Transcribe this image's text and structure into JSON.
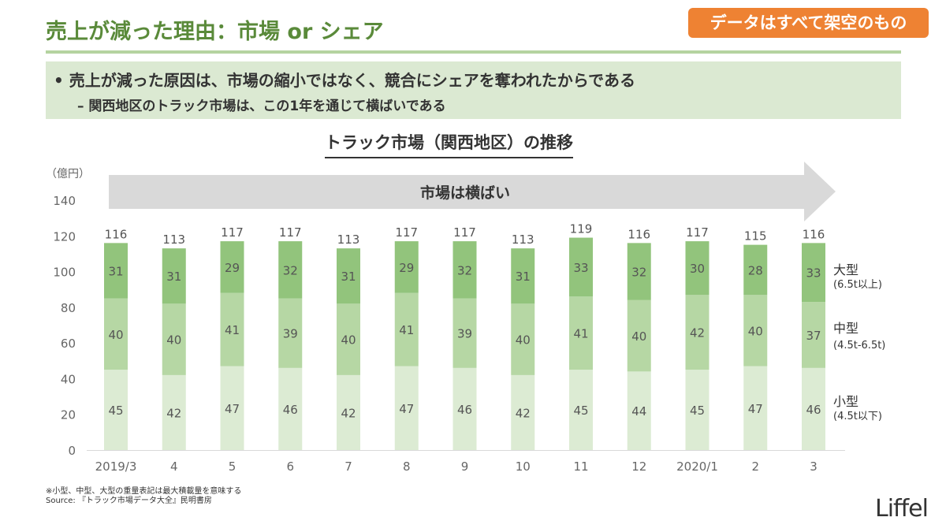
{
  "header": {
    "title": "売上が減った理由：市場 or シェア",
    "badge": "データはすべて架空のもの"
  },
  "message": {
    "main": "• 売上が減った原因は、市場の縮小ではなく、競合にシェアを奪われたからである",
    "sub": "– 関西地区のトラック市場は、この1年を通じて横ばいである"
  },
  "chart_data": {
    "type": "bar",
    "stacked": true,
    "title": "トラック市場（関西地区）の推移",
    "ylabel": "（億円）",
    "ylim": [
      0,
      140
    ],
    "yticks": [
      0,
      20,
      40,
      60,
      80,
      100,
      120,
      140
    ],
    "grid": false,
    "annotation": "市場は横ばい",
    "categories": [
      "2019/3",
      "4",
      "5",
      "6",
      "7",
      "8",
      "9",
      "10",
      "11",
      "12",
      "2020/1",
      "2",
      "3"
    ],
    "series": [
      {
        "name": "小型",
        "sub": "(4.5t以下)",
        "color": "#dcebd3",
        "values": [
          45,
          42,
          47,
          46,
          42,
          47,
          46,
          42,
          45,
          44,
          45,
          47,
          46
        ]
      },
      {
        "name": "中型",
        "sub": "(4.5t-6.5t)",
        "color": "#b6d7a4",
        "values": [
          40,
          40,
          41,
          39,
          40,
          41,
          39,
          40,
          41,
          40,
          42,
          40,
          37
        ]
      },
      {
        "name": "大型",
        "sub": "(6.5t以上)",
        "color": "#92c47c",
        "values": [
          31,
          31,
          29,
          32,
          31,
          29,
          32,
          31,
          33,
          32,
          30,
          28,
          33
        ]
      }
    ],
    "totals": [
      116,
      113,
      117,
      117,
      113,
      117,
      117,
      113,
      119,
      116,
      117,
      115,
      116
    ],
    "legend": "right"
  },
  "footer": {
    "note": "※小型、中型、大型の重量表記は最大積載量を意味する",
    "source": "Source: 『トラック市場データ大全』民明書房",
    "logo": "Liffel"
  }
}
